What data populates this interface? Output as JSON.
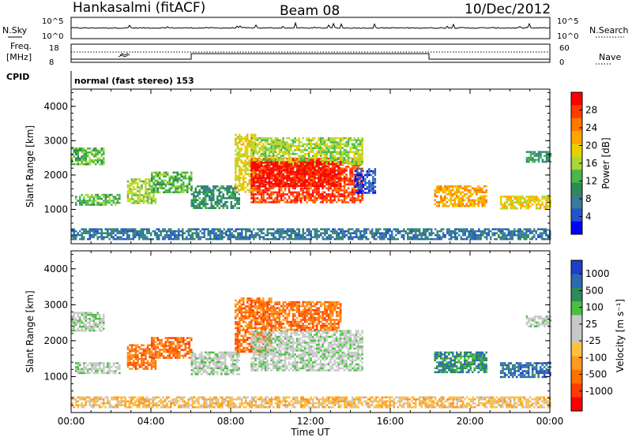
{
  "header": {
    "station": "Hankasalmi (fitACF)",
    "beam": "Beam 08",
    "date": "10/Dec/2012"
  },
  "top_panels": {
    "nsky_label": "N.Sky",
    "nsky_ticks": [
      "10^5",
      "10^0"
    ],
    "nsearch_label": "N.Search",
    "nsearch_ticks": [
      "10^5",
      "10^0"
    ],
    "freq_label_1": "Freq.",
    "freq_label_2": "[MHz]",
    "freq_ticks": [
      "18",
      "8"
    ],
    "nave_label": "Nave",
    "nave_ticks": [
      "60",
      "0"
    ],
    "cpid_label": "CPID",
    "cpid_text": "normal (fast stereo) 153"
  },
  "chart_data": [
    {
      "type": "heatmap",
      "name": "power-panel",
      "ylabel": "Slant Range [km]",
      "ylim": [
        0,
        4500
      ],
      "yticks": [
        "4000",
        "3000",
        "2000",
        "1000"
      ],
      "xlabel": "Time UT",
      "xticks": [
        "00:00",
        "04:00",
        "08:00",
        "12:00",
        "16:00",
        "20:00",
        "00:00"
      ],
      "xlim_hours": [
        0,
        24
      ],
      "colorbar": {
        "label": "Power [dB]",
        "ticks": [
          "28",
          "24",
          "20",
          "16",
          "12",
          "8",
          "4"
        ],
        "colors": [
          "#ff0000",
          "#ff3c00",
          "#ff7800",
          "#ffa500",
          "#e8d000",
          "#a8d838",
          "#48b848",
          "#2e8b57",
          "#3a7a9a",
          "#2255cc",
          "#0000ff"
        ]
      },
      "regions": [
        {
          "t0": 0.0,
          "t1": 1.6,
          "r0": 2300,
          "r1": 2800,
          "level": 6
        },
        {
          "t0": 0.2,
          "t1": 2.4,
          "r0": 1150,
          "r1": 1450,
          "level": 6
        },
        {
          "t0": 2.8,
          "t1": 4.2,
          "r0": 1200,
          "r1": 1900,
          "level": 5
        },
        {
          "t0": 4.0,
          "t1": 6.0,
          "r0": 1500,
          "r1": 2100,
          "level": 6
        },
        {
          "t0": 6.0,
          "t1": 8.4,
          "r0": 1050,
          "r1": 1700,
          "level": 7
        },
        {
          "t0": 8.2,
          "t1": 9.2,
          "r0": 1500,
          "r1": 3200,
          "level": 4
        },
        {
          "t0": 9.0,
          "t1": 14.6,
          "r0": 1200,
          "r1": 2500,
          "level": 1
        },
        {
          "t0": 9.0,
          "t1": 14.6,
          "r0": 2300,
          "r1": 3100,
          "level": 5
        },
        {
          "t0": 9.0,
          "t1": 13.5,
          "r0": 1700,
          "r1": 2400,
          "level": 0
        },
        {
          "t0": 14.2,
          "t1": 15.2,
          "r0": 1500,
          "r1": 2200,
          "level": 9
        },
        {
          "t0": 18.2,
          "t1": 20.8,
          "r0": 1100,
          "r1": 1700,
          "level": 3
        },
        {
          "t0": 21.5,
          "t1": 24.0,
          "r0": 1000,
          "r1": 1400,
          "level": 4
        },
        {
          "t0": 22.8,
          "t1": 24.0,
          "r0": 2400,
          "r1": 2700,
          "level": 7
        },
        {
          "t0": 0.0,
          "t1": 24.0,
          "r0": 150,
          "r1": 450,
          "level": 8
        }
      ]
    },
    {
      "type": "heatmap",
      "name": "velocity-panel",
      "ylabel": "Slant Range [km]",
      "ylim": [
        0,
        4500
      ],
      "yticks": [
        "4000",
        "3000",
        "2000",
        "1000"
      ],
      "xlabel": "Time UT",
      "xticks": [
        "00:00",
        "04:00",
        "08:00",
        "12:00",
        "16:00",
        "20:00",
        "00:00"
      ],
      "xlim_hours": [
        0,
        24
      ],
      "colorbar": {
        "label": "Velocity [m s⁻¹]",
        "ticks": [
          "1000",
          "500",
          "100",
          "25",
          "-25",
          "-100",
          "-500",
          "-1000"
        ],
        "colors": [
          "#1e3fc8",
          "#2a6ab0",
          "#2e8b57",
          "#48c040",
          "#c8c8c8",
          "#c8c8c8",
          "#ffc040",
          "#ff9a20",
          "#ff7000",
          "#ff3c00",
          "#ff0000"
        ]
      },
      "regions": [
        {
          "t0": 0.0,
          "t1": 1.6,
          "r0": 2300,
          "r1": 2800,
          "level": 4
        },
        {
          "t0": 0.2,
          "t1": 2.4,
          "r0": 1100,
          "r1": 1400,
          "level": 4
        },
        {
          "t0": 2.8,
          "t1": 4.2,
          "r0": 1200,
          "r1": 1900,
          "level": 8
        },
        {
          "t0": 4.0,
          "t1": 6.0,
          "r0": 1500,
          "r1": 2100,
          "level": 8
        },
        {
          "t0": 6.0,
          "t1": 8.4,
          "r0": 1050,
          "r1": 1700,
          "level": 4
        },
        {
          "t0": 8.2,
          "t1": 10.0,
          "r0": 1700,
          "r1": 3200,
          "level": 8
        },
        {
          "t0": 9.0,
          "t1": 14.6,
          "r0": 1200,
          "r1": 2300,
          "level": 4
        },
        {
          "t0": 9.5,
          "t1": 13.5,
          "r0": 2300,
          "r1": 3100,
          "level": 8
        },
        {
          "t0": 18.2,
          "t1": 20.8,
          "r0": 1100,
          "r1": 1700,
          "level": 2
        },
        {
          "t0": 21.5,
          "t1": 24.0,
          "r0": 1000,
          "r1": 1400,
          "level": 1
        },
        {
          "t0": 22.8,
          "t1": 24.0,
          "r0": 2400,
          "r1": 2700,
          "level": 4
        },
        {
          "t0": 0.0,
          "t1": 24.0,
          "r0": 150,
          "r1": 450,
          "level": 6
        }
      ]
    }
  ]
}
